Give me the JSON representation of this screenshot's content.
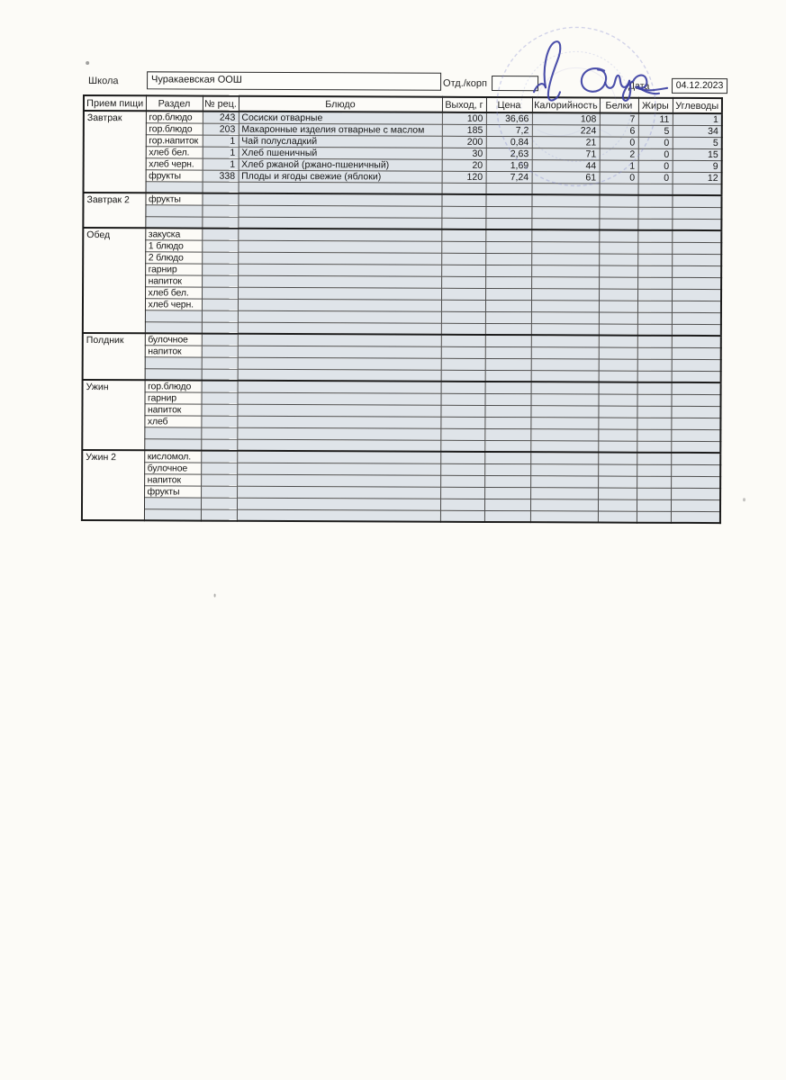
{
  "form": {
    "school_label": "Школа",
    "school_value": "Чуракаевская ООШ",
    "dept_label": "Отд./корп",
    "dept_value": "",
    "date_label": "Дата",
    "date_value": "04.12.2023"
  },
  "table": {
    "headers": {
      "meal": "Прием пищи",
      "razdel": "Раздел",
      "rec": "№ рец.",
      "dish": "Блюдо",
      "out": "Выход, г",
      "price": "Цена",
      "kcal": "Калорийность",
      "protein": "Белки",
      "fat": "Жиры",
      "carbs": "Углеводы"
    },
    "sections": [
      {
        "meal": "Завтрак",
        "rows": [
          {
            "razdel": "гор.блюдо",
            "rec": "243",
            "dish": "Сосиски отварные",
            "out": "100",
            "price": "36,66",
            "kcal": "108",
            "protein": "7",
            "fat": "11",
            "carbs": "1"
          },
          {
            "razdel": "гор.блюдо",
            "rec": "203",
            "dish": "Макаронные изделия отварные с маслом",
            "out": "185",
            "price": "7,2",
            "kcal": "224",
            "protein": "6",
            "fat": "5",
            "carbs": "34"
          },
          {
            "razdel": "гор.напиток",
            "rec": "1",
            "dish": "Чай полусладкий",
            "out": "200",
            "price": "0,84",
            "kcal": "21",
            "protein": "0",
            "fat": "0",
            "carbs": "5"
          },
          {
            "razdel": "хлеб бел.",
            "rec": "1",
            "dish": "Хлеб пшеничный",
            "out": "30",
            "price": "2,63",
            "kcal": "71",
            "protein": "2",
            "fat": "0",
            "carbs": "15"
          },
          {
            "razdel": "хлеб черн.",
            "rec": "1",
            "dish": "Хлеб ржаной (ржано-пшеничный)",
            "out": "20",
            "price": "1,69",
            "kcal": "44",
            "protein": "1",
            "fat": "0",
            "carbs": "9"
          },
          {
            "razdel": "фрукты",
            "rec": "338",
            "dish": "Плоды и ягоды свежие (яблоки)",
            "out": "120",
            "price": "7,24",
            "kcal": "61",
            "protein": "0",
            "fat": "0",
            "carbs": "12"
          },
          {
            "razdel": "",
            "rec": "",
            "dish": "",
            "out": "",
            "price": "",
            "kcal": "",
            "protein": "",
            "fat": "",
            "carbs": ""
          }
        ]
      },
      {
        "meal": "Завтрак 2",
        "rows": [
          {
            "razdel": "фрукты",
            "rec": "",
            "dish": "",
            "out": "",
            "price": "",
            "kcal": "",
            "protein": "",
            "fat": "",
            "carbs": ""
          },
          {
            "razdel": "",
            "rec": "",
            "dish": "",
            "out": "",
            "price": "",
            "kcal": "",
            "protein": "",
            "fat": "",
            "carbs": ""
          },
          {
            "razdel": "",
            "rec": "",
            "dish": "",
            "out": "",
            "price": "",
            "kcal": "",
            "protein": "",
            "fat": "",
            "carbs": ""
          }
        ]
      },
      {
        "meal": "Обед",
        "rows": [
          {
            "razdel": "закуска",
            "rec": "",
            "dish": "",
            "out": "",
            "price": "",
            "kcal": "",
            "protein": "",
            "fat": "",
            "carbs": ""
          },
          {
            "razdel": "1 блюдо",
            "rec": "",
            "dish": "",
            "out": "",
            "price": "",
            "kcal": "",
            "protein": "",
            "fat": "",
            "carbs": ""
          },
          {
            "razdel": "2 блюдо",
            "rec": "",
            "dish": "",
            "out": "",
            "price": "",
            "kcal": "",
            "protein": "",
            "fat": "",
            "carbs": ""
          },
          {
            "razdel": "гарнир",
            "rec": "",
            "dish": "",
            "out": "",
            "price": "",
            "kcal": "",
            "protein": "",
            "fat": "",
            "carbs": ""
          },
          {
            "razdel": "напиток",
            "rec": "",
            "dish": "",
            "out": "",
            "price": "",
            "kcal": "",
            "protein": "",
            "fat": "",
            "carbs": ""
          },
          {
            "razdel": "хлеб бел.",
            "rec": "",
            "dish": "",
            "out": "",
            "price": "",
            "kcal": "",
            "protein": "",
            "fat": "",
            "carbs": ""
          },
          {
            "razdel": "хлеб черн.",
            "rec": "",
            "dish": "",
            "out": "",
            "price": "",
            "kcal": "",
            "protein": "",
            "fat": "",
            "carbs": ""
          },
          {
            "razdel": "",
            "rec": "",
            "dish": "",
            "out": "",
            "price": "",
            "kcal": "",
            "protein": "",
            "fat": "",
            "carbs": ""
          },
          {
            "razdel": "",
            "rec": "",
            "dish": "",
            "out": "",
            "price": "",
            "kcal": "",
            "protein": "",
            "fat": "",
            "carbs": ""
          }
        ]
      },
      {
        "meal": "Полдник",
        "rows": [
          {
            "razdel": "булочное",
            "rec": "",
            "dish": "",
            "out": "",
            "price": "",
            "kcal": "",
            "protein": "",
            "fat": "",
            "carbs": ""
          },
          {
            "razdel": "напиток",
            "rec": "",
            "dish": "",
            "out": "",
            "price": "",
            "kcal": "",
            "protein": "",
            "fat": "",
            "carbs": ""
          },
          {
            "razdel": "",
            "rec": "",
            "dish": "",
            "out": "",
            "price": "",
            "kcal": "",
            "protein": "",
            "fat": "",
            "carbs": ""
          },
          {
            "razdel": "",
            "rec": "",
            "dish": "",
            "out": "",
            "price": "",
            "kcal": "",
            "protein": "",
            "fat": "",
            "carbs": ""
          }
        ]
      },
      {
        "meal": "Ужин",
        "rows": [
          {
            "razdel": "гор.блюдо",
            "rec": "",
            "dish": "",
            "out": "",
            "price": "",
            "kcal": "",
            "protein": "",
            "fat": "",
            "carbs": ""
          },
          {
            "razdel": "гарнир",
            "rec": "",
            "dish": "",
            "out": "",
            "price": "",
            "kcal": "",
            "protein": "",
            "fat": "",
            "carbs": ""
          },
          {
            "razdel": "напиток",
            "rec": "",
            "dish": "",
            "out": "",
            "price": "",
            "kcal": "",
            "protein": "",
            "fat": "",
            "carbs": ""
          },
          {
            "razdel": "хлеб",
            "rec": "",
            "dish": "",
            "out": "",
            "price": "",
            "kcal": "",
            "protein": "",
            "fat": "",
            "carbs": ""
          },
          {
            "razdel": "",
            "rec": "",
            "dish": "",
            "out": "",
            "price": "",
            "kcal": "",
            "protein": "",
            "fat": "",
            "carbs": ""
          },
          {
            "razdel": "",
            "rec": "",
            "dish": "",
            "out": "",
            "price": "",
            "kcal": "",
            "protein": "",
            "fat": "",
            "carbs": ""
          }
        ]
      },
      {
        "meal": "Ужин 2",
        "rows": [
          {
            "razdel": "кисломол.",
            "rec": "",
            "dish": "",
            "out": "",
            "price": "",
            "kcal": "",
            "protein": "",
            "fat": "",
            "carbs": ""
          },
          {
            "razdel": "булочное",
            "rec": "",
            "dish": "",
            "out": "",
            "price": "",
            "kcal": "",
            "protein": "",
            "fat": "",
            "carbs": ""
          },
          {
            "razdel": "напиток",
            "rec": "",
            "dish": "",
            "out": "",
            "price": "",
            "kcal": "",
            "protein": "",
            "fat": "",
            "carbs": ""
          },
          {
            "razdel": "фрукты",
            "rec": "",
            "dish": "",
            "out": "",
            "price": "",
            "kcal": "",
            "protein": "",
            "fat": "",
            "carbs": ""
          },
          {
            "razdel": "",
            "rec": "",
            "dish": "",
            "out": "",
            "price": "",
            "kcal": "",
            "protein": "",
            "fat": "",
            "carbs": ""
          },
          {
            "razdel": "",
            "rec": "",
            "dish": "",
            "out": "",
            "price": "",
            "kcal": "",
            "protein": "",
            "fat": "",
            "carbs": ""
          }
        ]
      }
    ]
  },
  "annotations": {
    "signature": "handwritten-blue-ink-signature",
    "stamp": "faint-round-blue-stamp"
  },
  "colors": {
    "paper": "#fcfbf7",
    "cell_fill": "#dfe4e9",
    "ink": "#3c40a3",
    "stamp": "#8087cc",
    "text": "#1d1d1d"
  }
}
